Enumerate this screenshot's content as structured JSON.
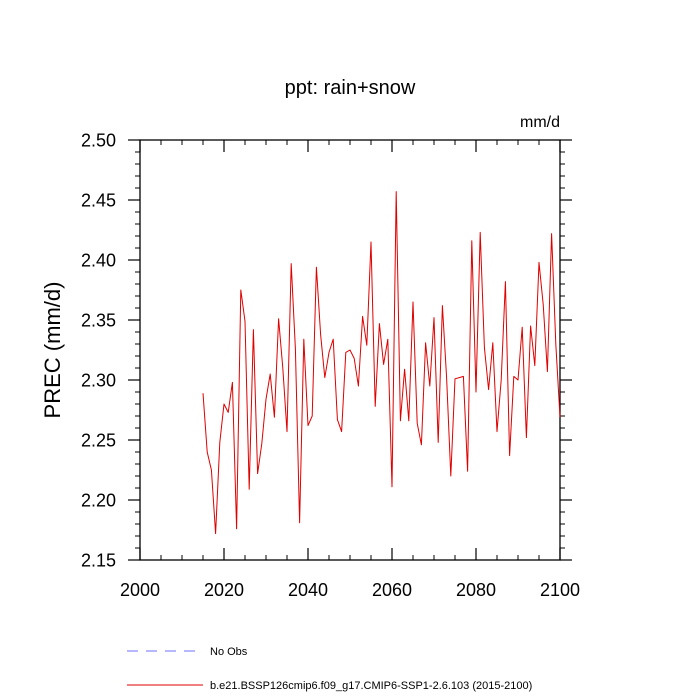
{
  "chart_data": {
    "type": "line",
    "title": "ppt: rain+snow",
    "units": "mm/d",
    "ylabel": "PREC  (mm/d)",
    "xlabel": "",
    "xlim": [
      2000,
      2100
    ],
    "ylim": [
      2.15,
      2.5
    ],
    "xticks": [
      2000,
      2020,
      2040,
      2060,
      2080,
      2100
    ],
    "yticks": [
      "2.15",
      "2.20",
      "2.25",
      "2.30",
      "2.35",
      "2.40",
      "2.45",
      "2.50"
    ],
    "x_minor_step": 5,
    "y_minor_step": 0.01,
    "grid": false,
    "legend": [
      {
        "label": "No Obs",
        "color": "#6f6fff",
        "style": "dashed"
      },
      {
        "label": "b.e21.BSSP126cmip6.f09_g17.CMIP6-SSP1-2.6.103 (2015-2100)",
        "color": "#e00000",
        "style": "solid"
      }
    ],
    "series": [
      {
        "name": "b.e21.BSSP126cmip6.f09_g17.CMIP6-SSP1-2.6.103 (2015-2100)",
        "color": "#e00000",
        "x": [
          2015,
          2016,
          2017,
          2018,
          2019,
          2020,
          2021,
          2022,
          2023,
          2024,
          2025,
          2026,
          2027,
          2028,
          2029,
          2030,
          2031,
          2032,
          2033,
          2034,
          2035,
          2036,
          2037,
          2038,
          2039,
          2040,
          2041,
          2042,
          2043,
          2044,
          2045,
          2046,
          2047,
          2048,
          2049,
          2050,
          2051,
          2052,
          2053,
          2054,
          2055,
          2056,
          2057,
          2058,
          2059,
          2060,
          2061,
          2062,
          2063,
          2064,
          2065,
          2066,
          2067,
          2068,
          2069,
          2070,
          2071,
          2072,
          2073,
          2074,
          2075,
          2076,
          2077,
          2078,
          2079,
          2080,
          2081,
          2082,
          2083,
          2084,
          2085,
          2086,
          2087,
          2088,
          2089,
          2090,
          2091,
          2092,
          2093,
          2094,
          2095,
          2096,
          2097,
          2098,
          2099,
          2100
        ],
        "values": [
          2.289,
          2.24,
          2.225,
          2.172,
          2.248,
          2.28,
          2.273,
          2.298,
          2.176,
          2.375,
          2.349,
          2.209,
          2.342,
          2.222,
          2.247,
          2.284,
          2.305,
          2.269,
          2.351,
          2.31,
          2.257,
          2.397,
          2.326,
          2.181,
          2.334,
          2.262,
          2.27,
          2.394,
          2.338,
          2.302,
          2.323,
          2.334,
          2.267,
          2.257,
          2.323,
          2.325,
          2.318,
          2.295,
          2.353,
          2.329,
          2.415,
          2.278,
          2.347,
          2.313,
          2.334,
          2.211,
          2.457,
          2.266,
          2.309,
          2.266,
          2.365,
          2.264,
          2.246,
          2.331,
          2.295,
          2.352,
          2.248,
          2.362,
          2.302,
          2.22,
          2.301,
          2.302,
          2.303,
          2.224,
          2.416,
          2.29,
          2.423,
          2.327,
          2.292,
          2.331,
          2.257,
          2.3,
          2.382,
          2.237,
          2.303,
          2.3,
          2.344,
          2.252,
          2.345,
          2.312,
          2.398,
          2.363,
          2.307,
          2.422,
          2.33,
          2.269
        ]
      }
    ]
  }
}
